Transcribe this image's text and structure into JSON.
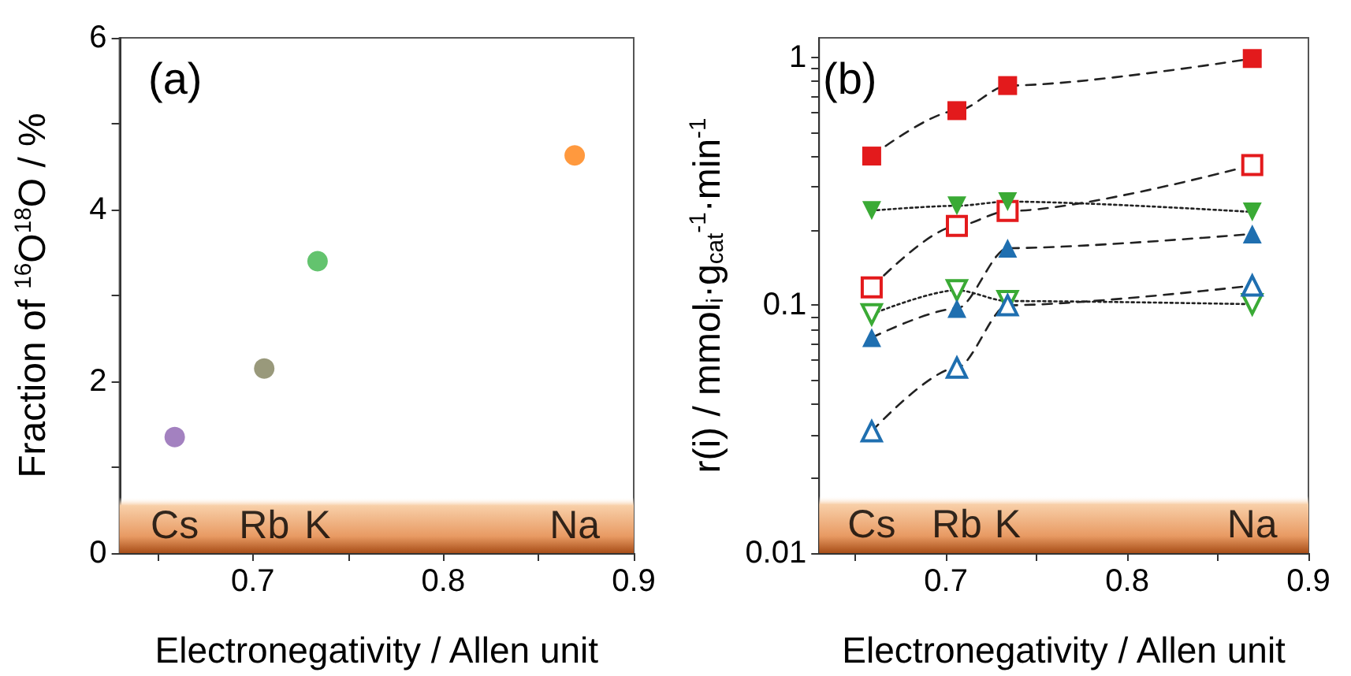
{
  "chart_data": [
    {
      "type": "scatter",
      "annotations": [
        "(a)",
        "Cs",
        "Rb",
        "K",
        "Na"
      ],
      "xlabel": "Electronegativity / Allen unit",
      "ylabel": "Fraction of $^{16}$O$^{18}$O / %",
      "x": [
        0.659,
        0.706,
        0.734,
        0.869
      ],
      "values": [
        1.35,
        2.15,
        3.4,
        4.63
      ],
      "colors": [
        "#8c62b0",
        "#7f7f5a",
        "#3cb44a",
        "#ff7f0e"
      ],
      "marker": "circle",
      "xlim": [
        0.63,
        0.9
      ],
      "xticks": [
        {
          "value": 0.65,
          "label": null
        },
        0.7,
        {
          "value": 0.75,
          "label": null
        },
        0.8,
        {
          "value": 0.85,
          "label": null
        },
        0.9
      ],
      "ylim": [
        0,
        6
      ],
      "yticks": [
        0,
        {
          "value": 1,
          "label": null
        },
        2,
        {
          "value": 3,
          "label": null
        },
        4,
        {
          "value": 5,
          "label": null
        },
        6
      ],
      "bands": [
        {
          "axis": "y",
          "from": 0,
          "to": 0.65,
          "color": "#a84e18"
        }
      ],
      "grid": false
    },
    {
      "type": "line",
      "annotations": [
        "(b)",
        "Cs",
        "Rb",
        "K",
        "Na"
      ],
      "xlabel": "Electronegativity / Allen unit",
      "ylabel": "r(i) / mmol$_{i}$·g$_{cat}$$^{-1}$·min$^{-1}$",
      "x": [
        0.659,
        0.706,
        0.734,
        0.869
      ],
      "log": "y",
      "series": [
        {
          "color": "#e31a1c",
          "marker": "square",
          "line_style": "dashed",
          "values": [
            0.4,
            0.61,
            0.77,
            0.99
          ]
        },
        {
          "color": "#e31a1c",
          "marker": "square-open",
          "line_style": "dashed",
          "values": [
            0.118,
            0.209,
            0.24,
            0.368
          ]
        },
        {
          "color": "#3aaa35",
          "marker": "triangle-down",
          "line_style": "dotted",
          "values": [
            0.241,
            0.252,
            0.262,
            0.238
          ]
        },
        {
          "color": "#3aaa35",
          "marker": "triangle-down-open",
          "line_style": "dotted",
          "values": [
            0.092,
            0.115,
            0.104,
            0.101
          ]
        },
        {
          "color": "#1f6fb0",
          "marker": "triangle",
          "line_style": "dashed",
          "values": [
            0.074,
            0.097,
            0.17,
            0.194
          ]
        },
        {
          "color": "#1f6fb0",
          "marker": "triangle-open",
          "line_style": "dashed",
          "values": [
            0.031,
            0.056,
            0.1,
            0.12
          ]
        }
      ],
      "xlim": [
        0.63,
        0.9
      ],
      "xticks": [
        {
          "value": 0.65,
          "label": null
        },
        0.7,
        {
          "value": 0.75,
          "label": null
        },
        0.8,
        {
          "value": 0.85,
          "label": null
        },
        0.9
      ],
      "ylim": [
        0.01,
        1.2
      ],
      "yticks": [
        0.01,
        {
          "value": 0.02,
          "label": null
        },
        {
          "value": 0.03,
          "label": null
        },
        {
          "value": 0.04,
          "label": null
        },
        {
          "value": 0.05,
          "label": null
        },
        {
          "value": 0.06,
          "label": null
        },
        {
          "value": 0.07,
          "label": null
        },
        {
          "value": 0.08,
          "label": null
        },
        {
          "value": 0.09,
          "label": null
        },
        0.1,
        {
          "value": 0.2,
          "label": null
        },
        {
          "value": 0.3,
          "label": null
        },
        {
          "value": 0.4,
          "label": null
        },
        {
          "value": 0.5,
          "label": null
        },
        {
          "value": 0.6,
          "label": null
        },
        {
          "value": 0.7,
          "label": null
        },
        {
          "value": 0.8,
          "label": null
        },
        {
          "value": 0.9,
          "label": null
        },
        1
      ],
      "bands": [
        {
          "axis": "y",
          "from": 0.01,
          "to": 0.017,
          "color": "#a84e18"
        }
      ],
      "grid": false
    }
  ]
}
